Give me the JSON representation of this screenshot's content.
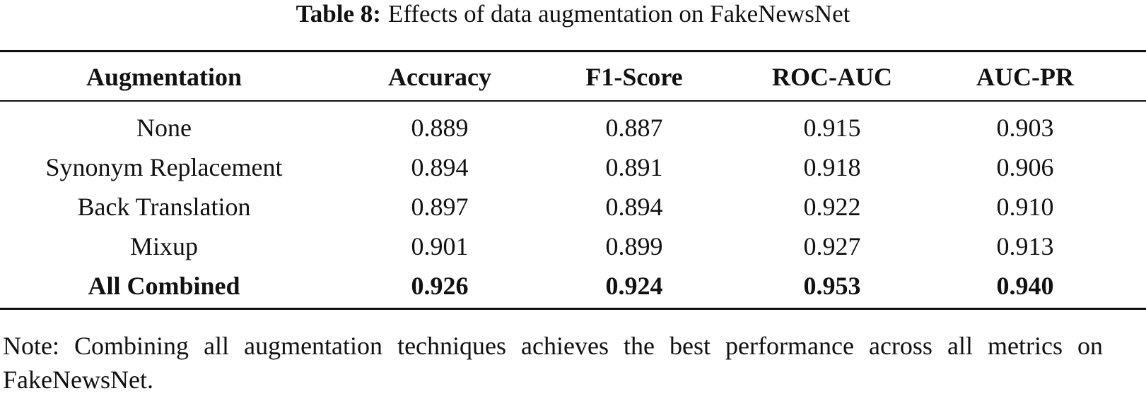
{
  "caption": {
    "label": "Table 8:",
    "text": "Effects of data augmentation on FakeNewsNet"
  },
  "table": {
    "header": [
      "Augmentation",
      "Accuracy",
      "F1-Score",
      "ROC-AUC",
      "AUC-PR"
    ],
    "rows": [
      [
        "None",
        "0.889",
        "0.887",
        "0.915",
        "0.903"
      ],
      [
        "Synonym Replacement",
        "0.894",
        "0.891",
        "0.918",
        "0.906"
      ],
      [
        "Back Translation",
        "0.897",
        "0.894",
        "0.922",
        "0.910"
      ],
      [
        "Mixup",
        "0.901",
        "0.899",
        "0.927",
        "0.913"
      ],
      [
        "All Combined",
        "0.926",
        "0.924",
        "0.953",
        "0.940"
      ]
    ]
  },
  "note": "Note: Combining all augmentation techniques achieves the best performance across all metrics on FakeNewsNet."
}
